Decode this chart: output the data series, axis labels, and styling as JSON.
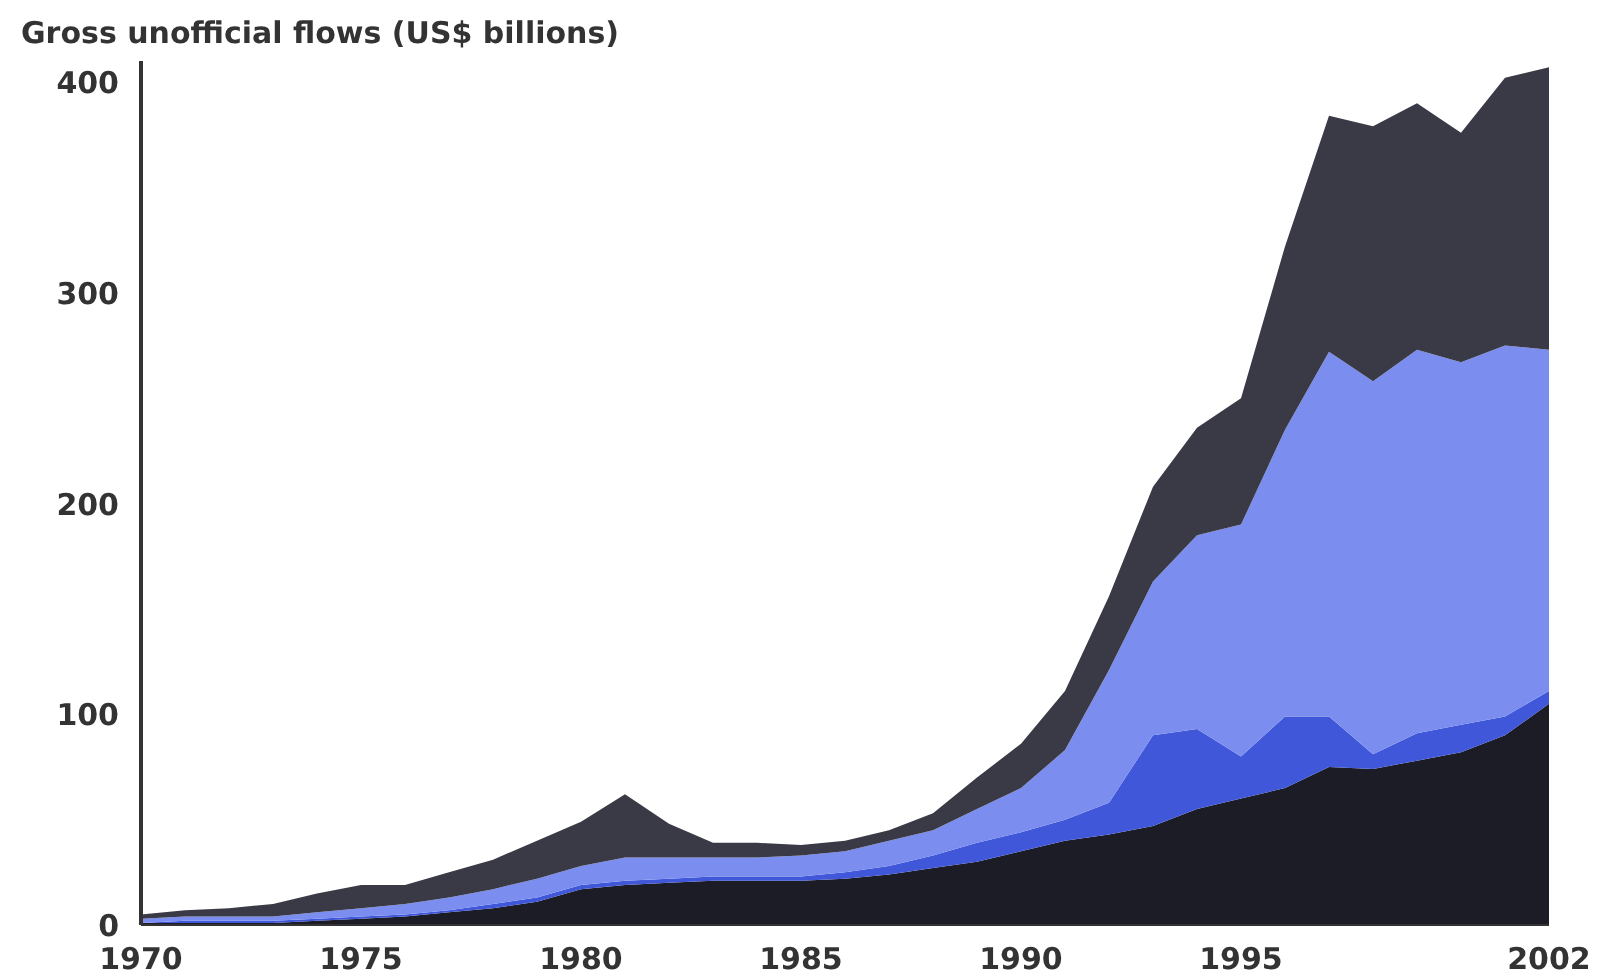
{
  "chart_data": {
    "type": "area",
    "stacked": true,
    "ylabel": "Gross unofficial flows (US$ billions)",
    "x": [
      1970,
      1971,
      1972,
      1973,
      1974,
      1975,
      1976,
      1977,
      1978,
      1979,
      1980,
      1981,
      1982,
      1983,
      1984,
      1985,
      1986,
      1987,
      1988,
      1989,
      1990,
      1991,
      1992,
      1993,
      1994,
      1995,
      1996,
      1997,
      1998,
      1999,
      2000,
      2001,
      2002
    ],
    "series": [
      {
        "color": "#1c1c26",
        "values": [
          1,
          1,
          1,
          1,
          2,
          3,
          4,
          6,
          8,
          11,
          17,
          19,
          20,
          21,
          21,
          21,
          22,
          24,
          27,
          30,
          35,
          40,
          43,
          47,
          55,
          60,
          65,
          75,
          74,
          78,
          82,
          90,
          105
        ]
      },
      {
        "color": "#3f57d8",
        "values": [
          0,
          1,
          1,
          1,
          1,
          1,
          1,
          1,
          2,
          2,
          2,
          2,
          2,
          2,
          2,
          2,
          3,
          4,
          6,
          9,
          9,
          10,
          15,
          43,
          38,
          20,
          34,
          24,
          7,
          13,
          13,
          9,
          6
        ]
      },
      {
        "color": "#7b8ef0",
        "values": [
          2,
          2,
          2,
          2,
          3,
          4,
          5,
          6,
          7,
          9,
          9,
          11,
          10,
          9,
          9,
          10,
          10,
          12,
          12,
          16,
          21,
          33,
          63,
          73,
          92,
          110,
          136,
          173,
          177,
          182,
          172,
          176,
          162
        ]
      },
      {
        "color": "#3a3a46",
        "values": [
          2,
          3,
          4,
          6,
          9,
          11,
          9,
          12,
          14,
          18,
          21,
          30,
          16,
          7,
          7,
          5,
          5,
          5,
          8,
          15,
          21,
          28,
          35,
          45,
          51,
          60,
          87,
          112,
          121,
          117,
          109,
          127,
          134
        ]
      }
    ],
    "xlim": [
      1970,
      2002
    ],
    "ylim": [
      0,
      410
    ],
    "xticks": [
      1970,
      1975,
      1980,
      1985,
      1990,
      1995,
      2002
    ],
    "yticks": [
      0,
      100,
      200,
      300,
      400
    ],
    "grid": false
  }
}
